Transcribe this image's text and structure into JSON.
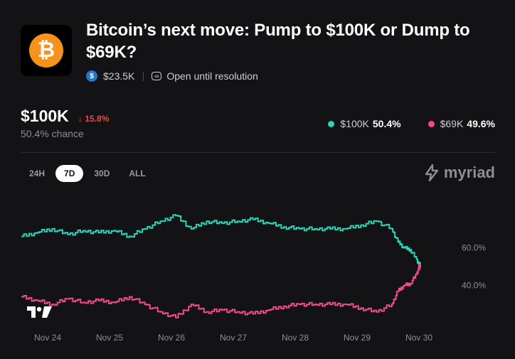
{
  "market": {
    "title": "Bitcoin’s next move: Pump to $100K or Dump to $69K?",
    "volume": "$23.5K",
    "status": "Open until resolution",
    "coin_symbol": "₿",
    "usdc_symbol": "$",
    "status_glyph": "∞"
  },
  "summary": {
    "price": "$100K",
    "change": "↓ 15.8%",
    "chance": "50.4% chance"
  },
  "legend": [
    {
      "label": "$100K",
      "value": "50.4%",
      "color": "#2ed3b7"
    },
    {
      "label": "$69K",
      "value": "49.6%",
      "color": "#f2498f"
    }
  ],
  "tabs": [
    {
      "label": "24H",
      "active": false
    },
    {
      "label": "7D",
      "active": true
    },
    {
      "label": "30D",
      "active": false
    },
    {
      "label": "ALL",
      "active": false
    }
  ],
  "brand": {
    "name": "myriad",
    "icon": "myriad-logo-icon"
  },
  "chart_data": {
    "type": "line",
    "title": "",
    "xlabel": "",
    "ylabel": "",
    "x_ticks": [
      "Nov 24",
      "Nov 25",
      "Nov 26",
      "Nov 27",
      "Nov 28",
      "Nov 29",
      "Nov 30"
    ],
    "y_ticks": [
      "60.0%",
      "40.0%"
    ],
    "ylim": [
      18,
      82
    ],
    "x": [
      0,
      0.25,
      0.5,
      0.75,
      1,
      1.25,
      1.5,
      1.75,
      2,
      2.25,
      2.5,
      2.75,
      3,
      3.25,
      3.5,
      3.75,
      4,
      4.25,
      4.5,
      4.75,
      5,
      5.25,
      5.5,
      5.75,
      6,
      6.1,
      6.2,
      6.3,
      6.4,
      6.45
    ],
    "series": [
      {
        "name": "$100K",
        "color": "#2ed3b7",
        "values": [
          66,
          68,
          70,
          67,
          69,
          68,
          69,
          66,
          70,
          74,
          77,
          70,
          74,
          73,
          74,
          75,
          73,
          71,
          70,
          70,
          70,
          70,
          72,
          74,
          70,
          63,
          60,
          59,
          54,
          50.4
        ]
      },
      {
        "name": "$69K",
        "color": "#f2498f",
        "values": [
          34,
          32,
          30,
          33,
          31,
          32,
          31,
          34,
          30,
          26,
          23,
          30,
          26,
          27,
          26,
          25,
          27,
          29,
          30,
          30,
          30,
          30,
          28,
          26,
          30,
          37,
          40,
          41,
          46,
          49.6
        ]
      }
    ]
  }
}
